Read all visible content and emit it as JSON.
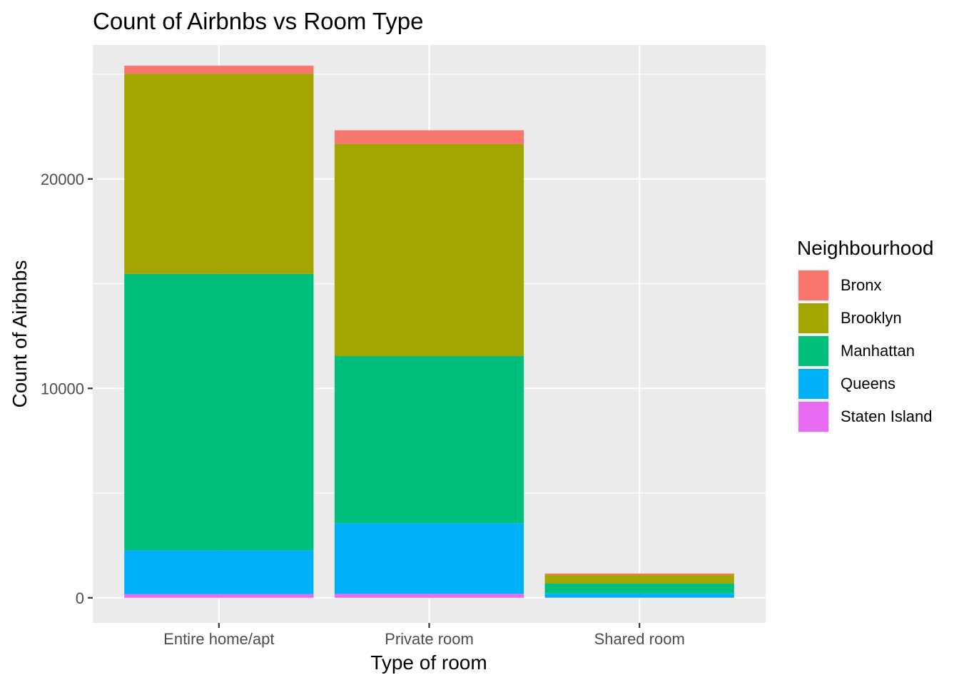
{
  "chart_data": {
    "type": "bar",
    "stacked": true,
    "title": "Count of Airbnbs vs  Room Type",
    "xlabel": "Type of room",
    "ylabel": "Count of Airbnbs",
    "categories": [
      "Entire home/apt",
      "Private room",
      "Shared room"
    ],
    "y_ticks": [
      0,
      10000,
      20000
    ],
    "ylim": [
      -1200,
      26400
    ],
    "grid": true,
    "legend": {
      "title": "Neighbourhood",
      "position": "right"
    },
    "series": [
      {
        "name": "Staten Island",
        "color": "#E76BF3",
        "values": [
          176,
          188,
          9
        ]
      },
      {
        "name": "Queens",
        "color": "#00B0F6",
        "values": [
          2096,
          3372,
          198
        ]
      },
      {
        "name": "Manhattan",
        "color": "#00BF7D",
        "values": [
          13199,
          7982,
          480
        ]
      },
      {
        "name": "Brooklyn",
        "color": "#A3A500",
        "values": [
          9559,
          10132,
          413
        ]
      },
      {
        "name": "Bronx",
        "color": "#F8766D",
        "values": [
          379,
          652,
          60
        ]
      }
    ],
    "legend_order": [
      "Bronx",
      "Brooklyn",
      "Manhattan",
      "Queens",
      "Staten Island"
    ]
  }
}
